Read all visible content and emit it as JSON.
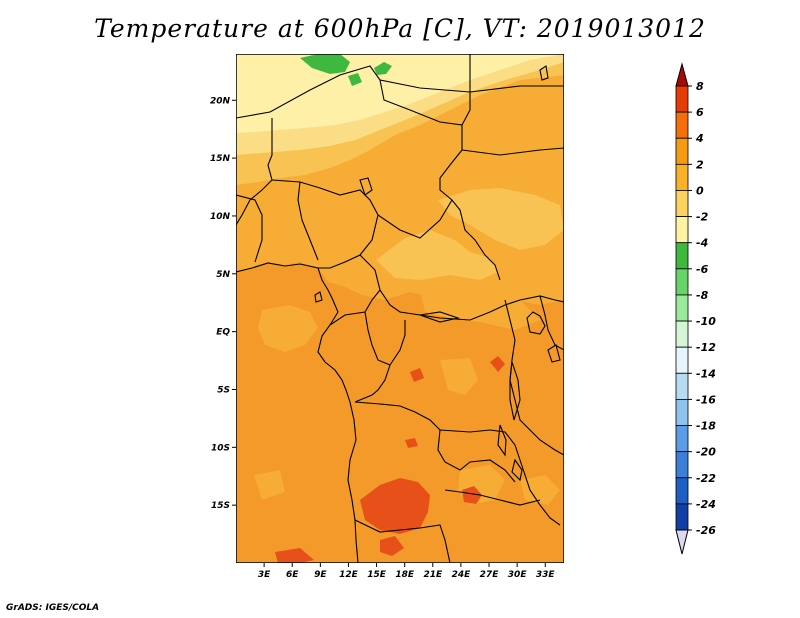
{
  "title": "Temperature at 600hPa [C], VT: 2019013012",
  "credit": "GrADS: IGES/COLA",
  "map": {
    "lon_range": [
      0,
      35
    ],
    "lat_range": [
      -20,
      24
    ],
    "lon_ticks": [
      "3E",
      "6E",
      "9E",
      "12E",
      "15E",
      "18E",
      "21E",
      "24E",
      "27E",
      "30E",
      "33E"
    ],
    "lat_ticks": [
      "20N",
      "15N",
      "10N",
      "5N",
      "EQ",
      "5S",
      "10S",
      "15S"
    ]
  },
  "colorbar": {
    "labels": [
      "8",
      "6",
      "4",
      "2",
      "0",
      "-2",
      "-4",
      "-6",
      "-8",
      "-10",
      "-12",
      "-14",
      "-16",
      "-18",
      "-20",
      "-22",
      "-24",
      "-26"
    ],
    "colors": [
      "#a50a0a",
      "#e63c05",
      "#f56e0a",
      "#f79a13",
      "#f8b22a",
      "#fbd25e",
      "#fef2a3",
      "#3fb83f",
      "#68d368",
      "#9bea9b",
      "#d6f5d6",
      "#e8f4fb",
      "#b7dcf2",
      "#8ec3ee",
      "#5a9de6",
      "#3c7fd6",
      "#1f5ec4",
      "#123fa5",
      "#0a1f86",
      "#0a0a60",
      "#dcd8f2"
    ]
  },
  "field_colors": {
    "above_6": "#e8501a",
    "4_to_6": "#f39a2a",
    "2_to_4": "#f6ac35",
    "0_to_2": "#f8c352",
    "minus2_to_0": "#fbdd85",
    "minus4_to_minus2": "#fef0a7",
    "minus6_to_minus4": "#3fb83f"
  }
}
